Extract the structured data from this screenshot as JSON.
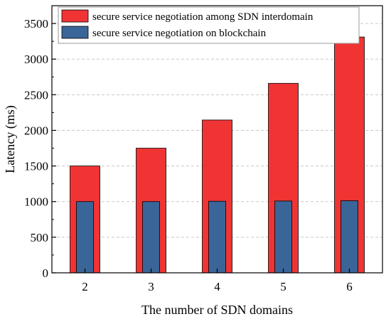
{
  "chart_data": {
    "type": "bar",
    "title": "",
    "xlabel": "The number of SDN domains",
    "ylabel": "Latency (ms)",
    "categories": [
      "2",
      "3",
      "4",
      "5",
      "6"
    ],
    "series": [
      {
        "name": "secure service negotiation among SDN interdomain",
        "color": "#f03434",
        "values": [
          1500,
          1750,
          2145,
          2660,
          3310
        ]
      },
      {
        "name": "secure service negotiation on blockchain",
        "color": "#3a6598",
        "values": [
          1000,
          1000,
          1005,
          1008,
          1012
        ]
      }
    ],
    "ylim": [
      0,
      3750
    ],
    "yticks": [
      0,
      500,
      1000,
      1500,
      2000,
      2500,
      3000,
      3500
    ],
    "grid": true,
    "legend_position": "top"
  }
}
